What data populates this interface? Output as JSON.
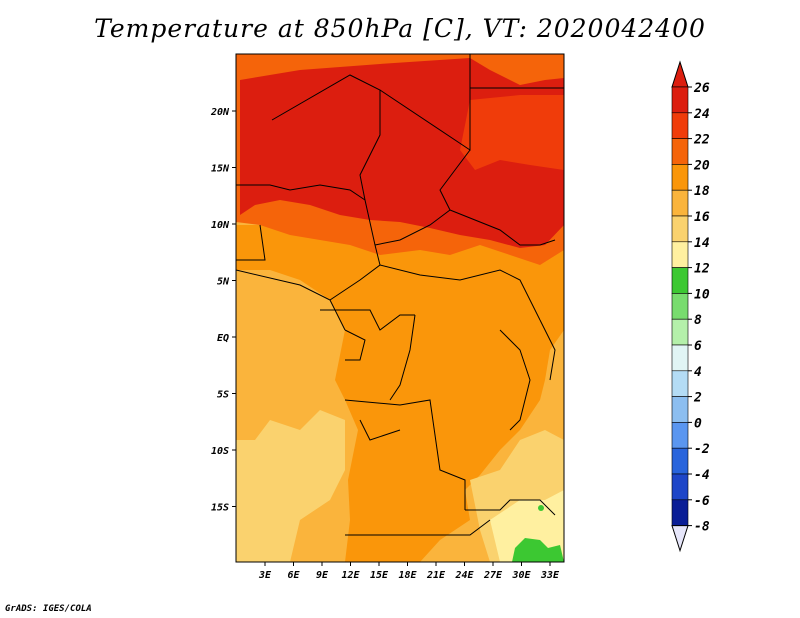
{
  "title": "Temperature at 850hPa [C], VT: 2020042400",
  "footer": "GrADS: IGES/COLA",
  "map": {
    "lat_labels": [
      {
        "lat": 20,
        "label": "20N"
      },
      {
        "lat": 15,
        "label": "15N"
      },
      {
        "lat": 10,
        "label": "10N"
      },
      {
        "lat": 5,
        "label": "5N"
      },
      {
        "lat": 0,
        "label": "EQ"
      },
      {
        "lat": -5,
        "label": "5S"
      },
      {
        "lat": -10,
        "label": "10S"
      },
      {
        "lat": -15,
        "label": "15S"
      }
    ],
    "lon_labels": [
      {
        "lon": 3,
        "label": "3E"
      },
      {
        "lon": 6,
        "label": "6E"
      },
      {
        "lon": 9,
        "label": "9E"
      },
      {
        "lon": 12,
        "label": "12E"
      },
      {
        "lon": 15,
        "label": "15E"
      },
      {
        "lon": 18,
        "label": "18E"
      },
      {
        "lon": 21,
        "label": "21E"
      },
      {
        "lon": 24,
        "label": "24E"
      },
      {
        "lon": 27,
        "label": "27E"
      },
      {
        "lon": 30,
        "label": "30E"
      },
      {
        "lon": 33,
        "label": "33E"
      }
    ]
  },
  "colorbar": {
    "levels": [
      "26",
      "24",
      "22",
      "20",
      "18",
      "16",
      "14",
      "12",
      "10",
      "8",
      "6",
      "4",
      "2",
      "0",
      "-2",
      "-4",
      "-6",
      "-8"
    ],
    "colors": [
      "#dc1e0f",
      "#f03c0a",
      "#f5640a",
      "#fa960a",
      "#fab43c",
      "#fad26e",
      "#fff0a0",
      "#3cc832",
      "#78dc6e",
      "#b4f0aa",
      "#e1f5f5",
      "#b4dcf5",
      "#8cbef0",
      "#5a96f0",
      "#2864dc",
      "#1e46c8",
      "#0a1e96",
      "#000064"
    ],
    "over_color": "#dc1e0f",
    "under_color": "#e6e6fa"
  }
}
